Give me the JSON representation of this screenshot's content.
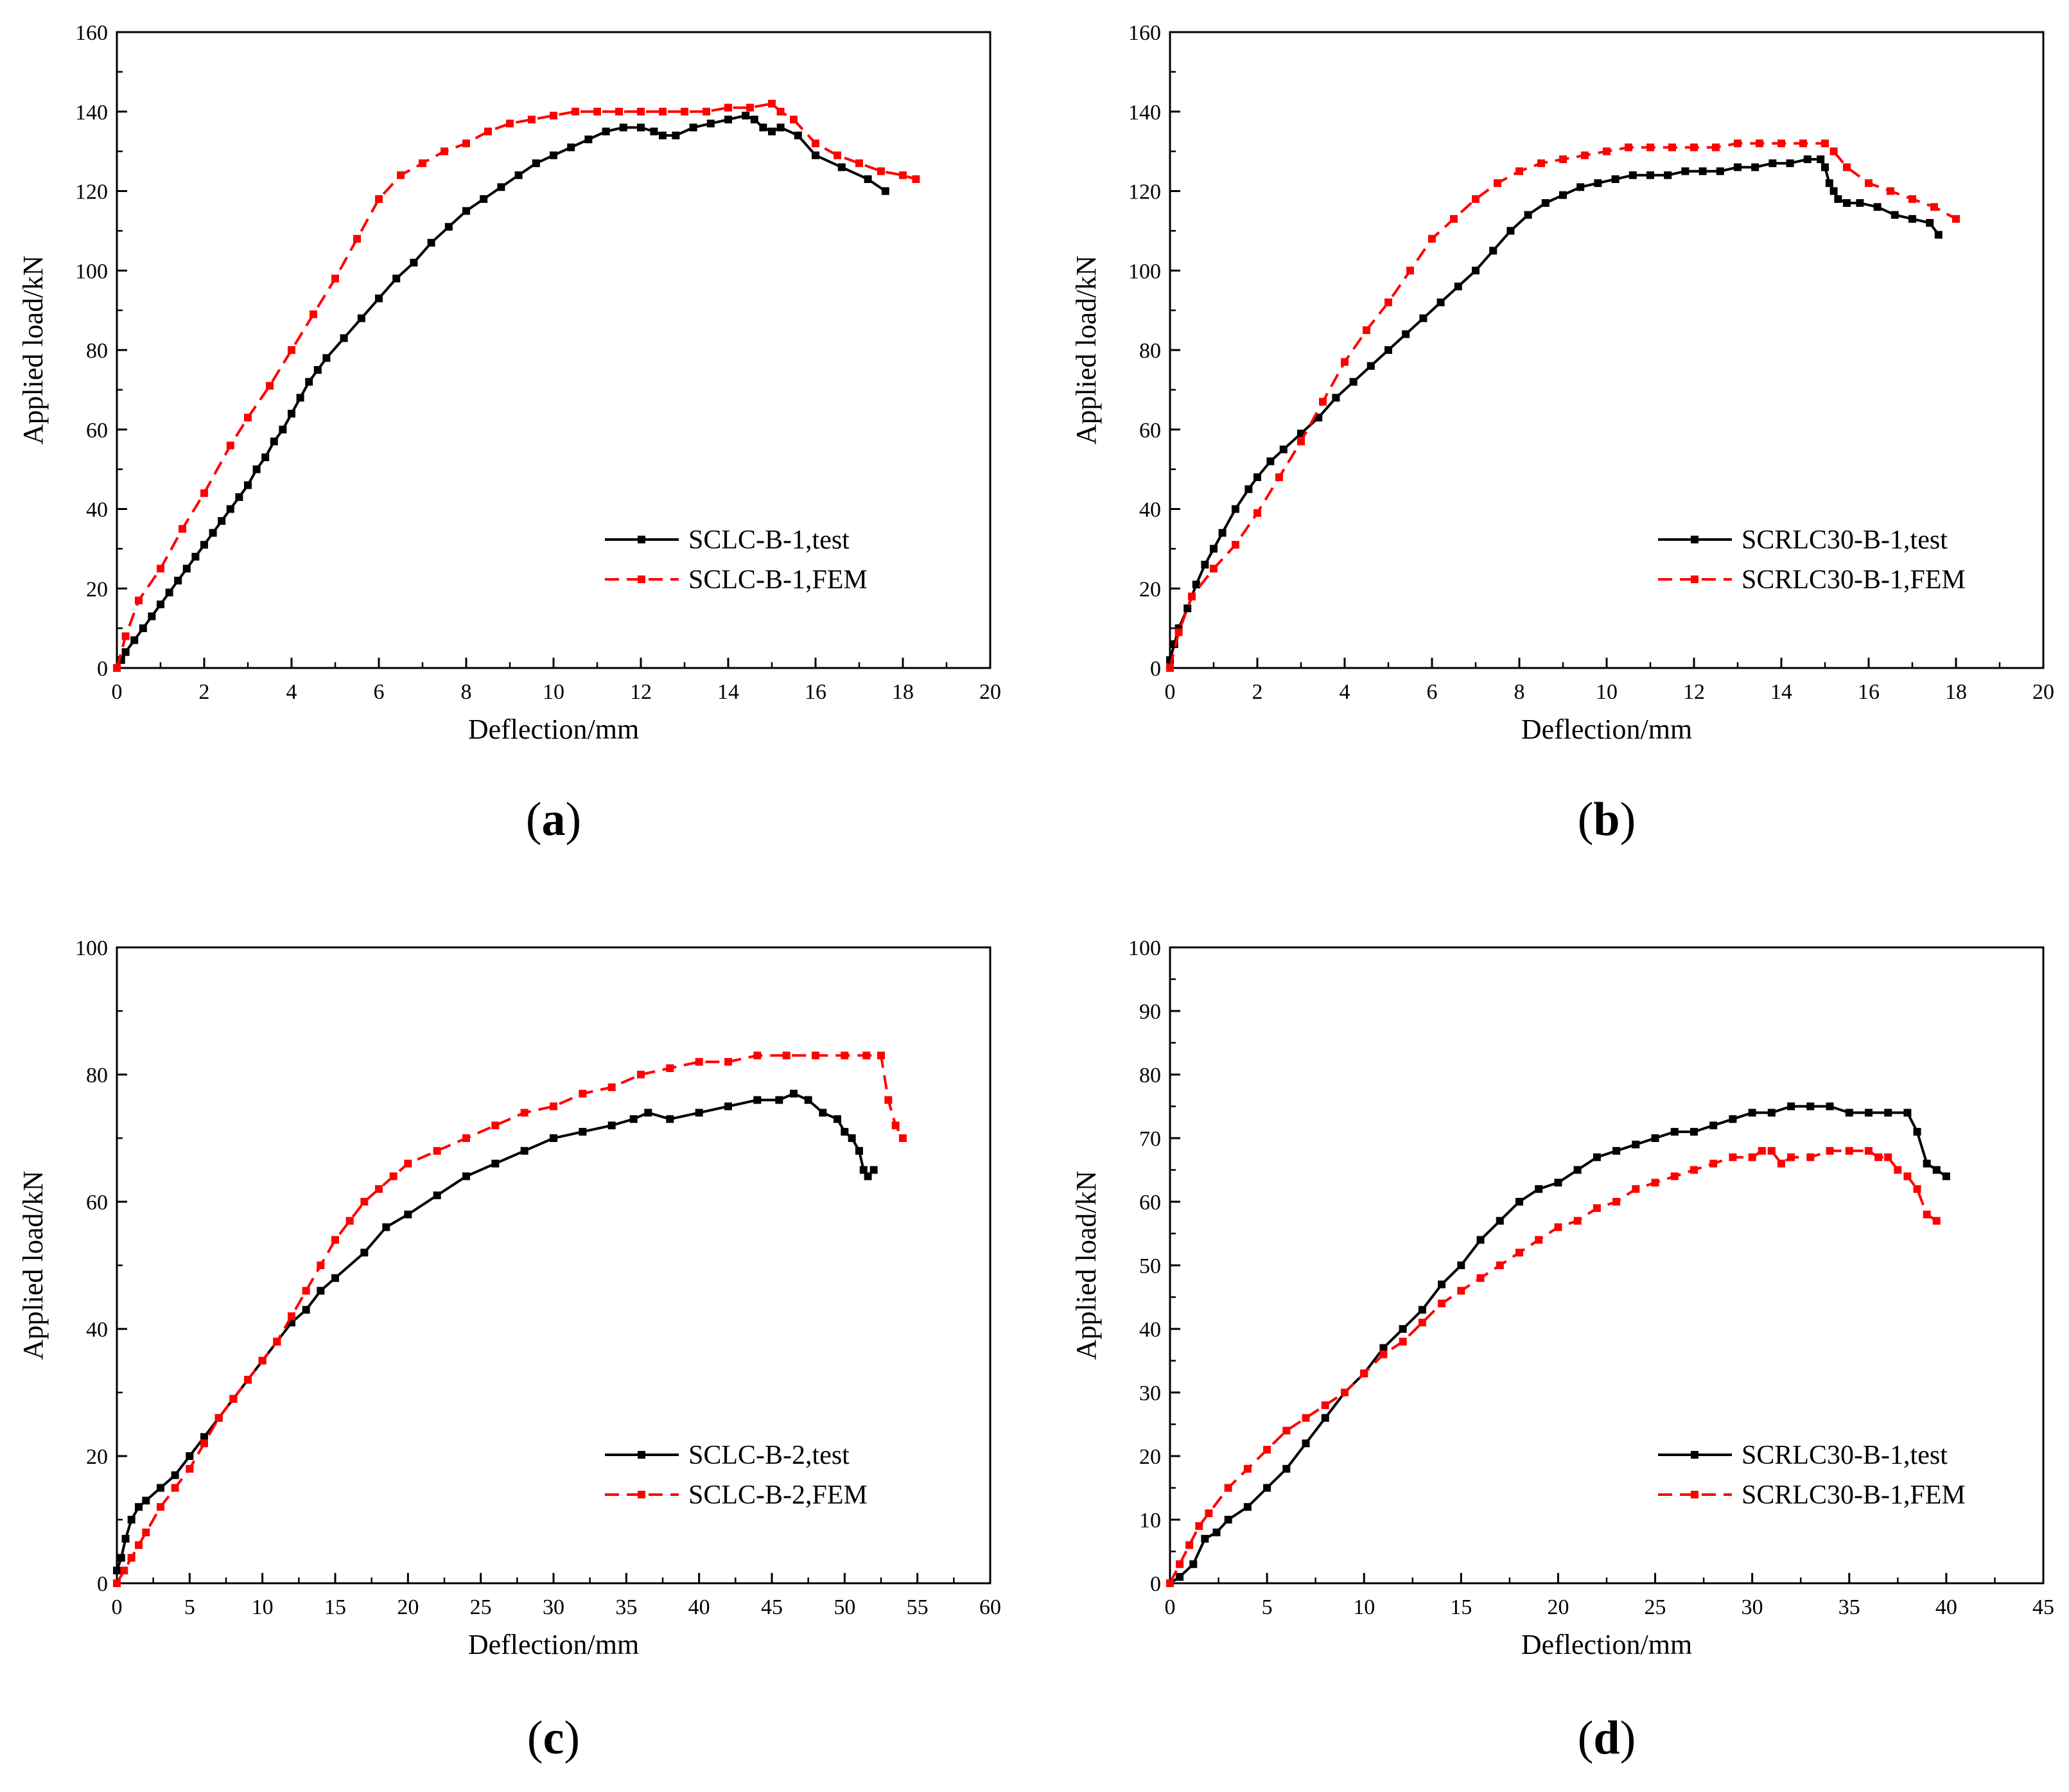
{
  "colors": {
    "test": "#000000",
    "fem": "#ff0000"
  },
  "chart_data": [
    {
      "id": "a",
      "type": "line",
      "panel_label": "a",
      "xlabel": "Deflection/mm",
      "ylabel": "Applied load/kN",
      "xlim": [
        0,
        20
      ],
      "ylim": [
        0,
        160
      ],
      "xticks": [
        0,
        2,
        4,
        6,
        8,
        10,
        12,
        14,
        16,
        18,
        20
      ],
      "yticks": [
        0,
        20,
        40,
        60,
        80,
        100,
        120,
        140,
        160
      ],
      "legend_position": "lower-right",
      "series": [
        {
          "name": "SCLC-B-1,test",
          "style": "test",
          "x": [
            0.1,
            0.2,
            0.4,
            0.6,
            0.8,
            1.0,
            1.2,
            1.4,
            1.6,
            1.8,
            2.0,
            2.2,
            2.4,
            2.6,
            2.8,
            3.0,
            3.2,
            3.4,
            3.6,
            3.8,
            4.0,
            4.2,
            4.4,
            4.6,
            4.8,
            5.2,
            5.6,
            6.0,
            6.4,
            6.8,
            7.2,
            7.6,
            8.0,
            8.4,
            8.8,
            9.2,
            9.6,
            10.0,
            10.4,
            10.8,
            11.2,
            11.6,
            12.0,
            12.3,
            12.5,
            12.8,
            13.2,
            13.6,
            14.0,
            14.4,
            14.6,
            14.8,
            15.0,
            15.2,
            15.6,
            16.0,
            16.6,
            17.2,
            17.6
          ],
          "y": [
            2,
            4,
            7,
            10,
            13,
            16,
            19,
            22,
            25,
            28,
            31,
            34,
            37,
            40,
            43,
            46,
            50,
            53,
            57,
            60,
            64,
            68,
            72,
            75,
            78,
            83,
            88,
            93,
            98,
            102,
            107,
            111,
            115,
            118,
            121,
            124,
            127,
            129,
            131,
            133,
            135,
            136,
            136,
            135,
            134,
            134,
            136,
            137,
            138,
            139,
            138,
            136,
            135,
            136,
            134,
            129,
            126,
            123,
            120
          ]
        },
        {
          "name": "SCLC-B-1,FEM",
          "style": "fem",
          "x": [
            0.0,
            0.2,
            0.5,
            1.0,
            1.5,
            2.0,
            2.6,
            3.0,
            3.5,
            4.0,
            4.5,
            5.0,
            5.5,
            6.0,
            6.5,
            7.0,
            7.5,
            8.0,
            8.5,
            9.0,
            9.5,
            10.0,
            10.5,
            11.0,
            11.5,
            12.0,
            12.5,
            13.0,
            13.5,
            14.0,
            14.5,
            15.0,
            15.2,
            15.5,
            16.0,
            16.5,
            17.0,
            17.5,
            18.0,
            18.3
          ],
          "y": [
            0,
            8,
            17,
            25,
            35,
            44,
            56,
            63,
            71,
            80,
            89,
            98,
            108,
            118,
            124,
            127,
            130,
            132,
            135,
            137,
            138,
            139,
            140,
            140,
            140,
            140,
            140,
            140,
            140,
            141,
            141,
            142,
            140,
            138,
            132,
            129,
            127,
            125,
            124,
            123
          ]
        }
      ]
    },
    {
      "id": "b",
      "type": "line",
      "panel_label": "b",
      "xlabel": "Deflection/mm",
      "ylabel": "Applied load/kN",
      "xlim": [
        0,
        20
      ],
      "ylim": [
        0,
        160
      ],
      "xticks": [
        0,
        2,
        4,
        6,
        8,
        10,
        12,
        14,
        16,
        18,
        20
      ],
      "yticks": [
        0,
        20,
        40,
        60,
        80,
        100,
        120,
        140,
        160
      ],
      "legend_position": "lower-right",
      "series": [
        {
          "name": "SCRLC30-B-1,test",
          "style": "test",
          "x": [
            0.0,
            0.1,
            0.2,
            0.4,
            0.6,
            0.8,
            1.0,
            1.2,
            1.5,
            1.8,
            2.0,
            2.3,
            2.6,
            3.0,
            3.4,
            3.8,
            4.2,
            4.6,
            5.0,
            5.4,
            5.8,
            6.2,
            6.6,
            7.0,
            7.4,
            7.8,
            8.2,
            8.6,
            9.0,
            9.4,
            9.8,
            10.2,
            10.6,
            11.0,
            11.4,
            11.8,
            12.2,
            12.6,
            13.0,
            13.4,
            13.8,
            14.2,
            14.6,
            14.9,
            15.0,
            15.1,
            15.2,
            15.3,
            15.5,
            15.8,
            16.2,
            16.6,
            17.0,
            17.4,
            17.6
          ],
          "y": [
            2,
            6,
            10,
            15,
            21,
            26,
            30,
            34,
            40,
            45,
            48,
            52,
            55,
            59,
            63,
            68,
            72,
            76,
            80,
            84,
            88,
            92,
            96,
            100,
            105,
            110,
            114,
            117,
            119,
            121,
            122,
            123,
            124,
            124,
            124,
            125,
            125,
            125,
            126,
            126,
            127,
            127,
            128,
            128,
            126,
            122,
            120,
            118,
            117,
            117,
            116,
            114,
            113,
            112,
            109
          ]
        },
        {
          "name": "SCRLC30-B-1,FEM",
          "style": "fem",
          "x": [
            0.0,
            0.2,
            0.5,
            1.0,
            1.5,
            2.0,
            2.5,
            3.0,
            3.5,
            4.0,
            4.5,
            5.0,
            5.5,
            6.0,
            6.5,
            7.0,
            7.5,
            8.0,
            8.5,
            9.0,
            9.5,
            10.0,
            10.5,
            11.0,
            11.5,
            12.0,
            12.5,
            13.0,
            13.5,
            14.0,
            14.5,
            15.0,
            15.2,
            15.5,
            16.0,
            16.5,
            17.0,
            17.5,
            18.0
          ],
          "y": [
            0,
            9,
            18,
            25,
            31,
            39,
            48,
            57,
            67,
            77,
            85,
            92,
            100,
            108,
            113,
            118,
            122,
            125,
            127,
            128,
            129,
            130,
            131,
            131,
            131,
            131,
            131,
            132,
            132,
            132,
            132,
            132,
            130,
            126,
            122,
            120,
            118,
            116,
            113
          ]
        }
      ]
    },
    {
      "id": "c",
      "type": "line",
      "panel_label": "c",
      "xlabel": "Deflection/mm",
      "ylabel": "Applied load/kN",
      "xlim": [
        0,
        60
      ],
      "ylim": [
        0,
        100
      ],
      "xticks": [
        0,
        5,
        10,
        15,
        20,
        25,
        30,
        35,
        40,
        45,
        50,
        55,
        60
      ],
      "yticks": [
        0,
        20,
        40,
        60,
        80,
        100
      ],
      "legend_position": "lower-right",
      "series": [
        {
          "name": "SCLC-B-2,test",
          "style": "test",
          "x": [
            0.0,
            0.3,
            0.6,
            1.0,
            1.5,
            2.0,
            3.0,
            4.0,
            5.0,
            6.0,
            7.0,
            8.0,
            9.0,
            10.0,
            11.0,
            12.0,
            13.0,
            14.0,
            15.0,
            17.0,
            18.5,
            20.0,
            22.0,
            24.0,
            26.0,
            28.0,
            30.0,
            32.0,
            34.0,
            35.5,
            36.5,
            38.0,
            40.0,
            42.0,
            44.0,
            45.5,
            46.5,
            47.5,
            48.5,
            49.5,
            50.0,
            50.5,
            51.0,
            51.3,
            51.6,
            52.0
          ],
          "y": [
            2,
            4,
            7,
            10,
            12,
            13,
            15,
            17,
            20,
            23,
            26,
            29,
            32,
            35,
            38,
            41,
            43,
            46,
            48,
            52,
            56,
            58,
            61,
            64,
            66,
            68,
            70,
            71,
            72,
            73,
            74,
            73,
            74,
            75,
            76,
            76,
            77,
            76,
            74,
            73,
            71,
            70,
            68,
            65,
            64,
            65
          ]
        },
        {
          "name": "SCLC-B-2,FEM",
          "style": "fem",
          "x": [
            0.0,
            0.5,
            1.0,
            1.5,
            2.0,
            3.0,
            4.0,
            5.0,
            6.0,
            7.0,
            8.0,
            9.0,
            10.0,
            11.0,
            12.0,
            13.0,
            14.0,
            15.0,
            16.0,
            17.0,
            18.0,
            19.0,
            20.0,
            22.0,
            24.0,
            26.0,
            28.0,
            30.0,
            32.0,
            34.0,
            36.0,
            38.0,
            40.0,
            42.0,
            44.0,
            46.0,
            48.0,
            50.0,
            51.5,
            52.5,
            53.0,
            53.5,
            54.0
          ],
          "y": [
            0,
            2,
            4,
            6,
            8,
            12,
            15,
            18,
            22,
            26,
            29,
            32,
            35,
            38,
            42,
            46,
            50,
            54,
            57,
            60,
            62,
            64,
            66,
            68,
            70,
            72,
            74,
            75,
            77,
            78,
            80,
            81,
            82,
            82,
            83,
            83,
            83,
            83,
            83,
            83,
            76,
            72,
            70
          ]
        }
      ]
    },
    {
      "id": "d",
      "type": "line",
      "panel_label": "d",
      "xlabel": "Deflection/mm",
      "ylabel": "Applied load/kN",
      "xlim": [
        0,
        45
      ],
      "ylim": [
        0,
        100
      ],
      "xticks": [
        0,
        5,
        10,
        15,
        20,
        25,
        30,
        35,
        40,
        45
      ],
      "yticks": [
        0,
        10,
        20,
        30,
        40,
        50,
        60,
        70,
        80,
        90,
        100
      ],
      "legend_position": "lower-right",
      "series": [
        {
          "name": "SCRLC30-B-1,test",
          "style": "test",
          "x": [
            0.0,
            0.5,
            1.2,
            1.8,
            2.4,
            3.0,
            4.0,
            5.0,
            6.0,
            7.0,
            8.0,
            9.0,
            10.0,
            11.0,
            12.0,
            13.0,
            14.0,
            15.0,
            16.0,
            17.0,
            18.0,
            19.0,
            20.0,
            21.0,
            22.0,
            23.0,
            24.0,
            25.0,
            26.0,
            27.0,
            28.0,
            29.0,
            30.0,
            31.0,
            32.0,
            33.0,
            34.0,
            35.0,
            36.0,
            37.0,
            38.0,
            38.5,
            39.0,
            39.5,
            40.0
          ],
          "y": [
            0,
            1,
            3,
            7,
            8,
            10,
            12,
            15,
            18,
            22,
            26,
            30,
            33,
            37,
            40,
            43,
            47,
            50,
            54,
            57,
            60,
            62,
            63,
            65,
            67,
            68,
            69,
            70,
            71,
            71,
            72,
            73,
            74,
            74,
            75,
            75,
            75,
            74,
            74,
            74,
            74,
            71,
            66,
            65,
            64
          ]
        },
        {
          "name": "SCRLC30-B-1,FEM",
          "style": "fem",
          "x": [
            0.0,
            0.5,
            1.0,
            1.5,
            2.0,
            3.0,
            4.0,
            5.0,
            6.0,
            7.0,
            8.0,
            9.0,
            10.0,
            11.0,
            12.0,
            13.0,
            14.0,
            15.0,
            16.0,
            17.0,
            18.0,
            19.0,
            20.0,
            21.0,
            22.0,
            23.0,
            24.0,
            25.0,
            26.0,
            27.0,
            28.0,
            29.0,
            30.0,
            30.5,
            31.0,
            31.5,
            32.0,
            33.0,
            34.0,
            35.0,
            36.0,
            36.5,
            37.0,
            37.5,
            38.0,
            38.5,
            39.0,
            39.5
          ],
          "y": [
            0,
            3,
            6,
            9,
            11,
            15,
            18,
            21,
            24,
            26,
            28,
            30,
            33,
            36,
            38,
            41,
            44,
            46,
            48,
            50,
            52,
            54,
            56,
            57,
            59,
            60,
            62,
            63,
            64,
            65,
            66,
            67,
            67,
            68,
            68,
            66,
            67,
            67,
            68,
            68,
            68,
            67,
            67,
            65,
            64,
            62,
            58,
            57
          ]
        }
      ]
    }
  ]
}
